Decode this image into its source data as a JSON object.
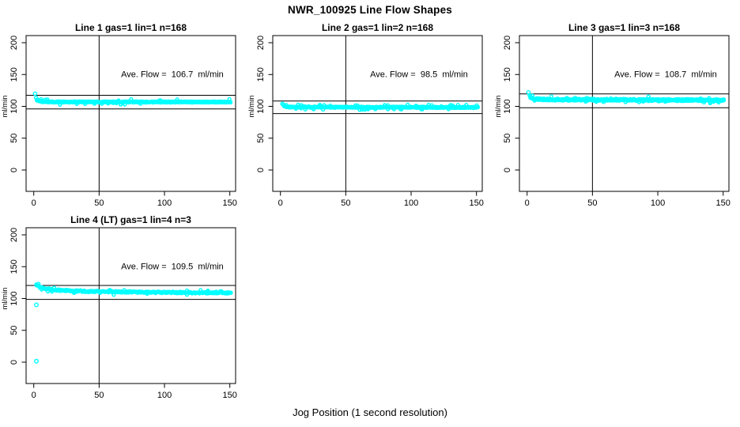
{
  "figure": {
    "title": "NWR_100925  Line Flow Shapes",
    "xlabel": "Jog Position (1 second resolution)",
    "point_color": "#00ffff",
    "axis_color": "#000000",
    "background_color": "#ffffff"
  },
  "chart_data": [
    {
      "type": "scatter",
      "title": "Line 1 gas=1 lin=1 n=168",
      "ylabel": "ml/min",
      "annotation": "Ave. Flow =  106.7  ml/min",
      "avg_flow_ml_min": 106.7,
      "x_ticks": [
        0,
        50,
        100,
        150
      ],
      "y_ticks": [
        0,
        50,
        100,
        150,
        200
      ],
      "vline_x": 50,
      "hlines": [
        117.4,
        96.0
      ],
      "band": [
        [
          2.5,
          110
        ],
        [
          4,
          108.3
        ],
        [
          7,
          107.5
        ],
        [
          12,
          107
        ],
        [
          151,
          106.8
        ]
      ],
      "lead_points": [
        [
          1,
          120
        ],
        [
          1.8,
          113.5
        ]
      ],
      "outliers": [],
      "jitter": 1.1,
      "density": 3,
      "annotation_pos": [
        106,
        151
      ]
    },
    {
      "type": "scatter",
      "title": "Line 2 gas=1 lin=2 n=168",
      "ylabel": "ml/min",
      "annotation": "Ave. Flow =  98.5  ml/min",
      "avg_flow_ml_min": 98.5,
      "x_ticks": [
        0,
        50,
        100,
        150
      ],
      "y_ticks": [
        0,
        50,
        100,
        150,
        200
      ],
      "vline_x": 50,
      "hlines": [
        108.4,
        88.7
      ],
      "band": [
        [
          3,
          100.3
        ],
        [
          5,
          99.2
        ],
        [
          10,
          98.8
        ],
        [
          151,
          98.4
        ]
      ],
      "lead_points": [
        [
          1.5,
          104
        ],
        [
          2.2,
          102.5
        ],
        [
          3,
          101.2
        ]
      ],
      "outliers": [],
      "jitter": 1.1,
      "density": 3,
      "annotation_pos": [
        106,
        151
      ]
    },
    {
      "type": "scatter",
      "title": "Line 3 gas=1 lin=3 n=168",
      "ylabel": "ml/min",
      "annotation": "Ave. Flow =  108.7  ml/min",
      "avg_flow_ml_min": 108.7,
      "x_ticks": [
        0,
        50,
        100,
        150
      ],
      "y_ticks": [
        0,
        50,
        100,
        150,
        200
      ],
      "vline_x": 50,
      "hlines": [
        119.6,
        97.8
      ],
      "band": [
        [
          2.5,
          114.5
        ],
        [
          4,
          112.5
        ],
        [
          8,
          111.3
        ],
        [
          20,
          110.6
        ],
        [
          80,
          110.2
        ],
        [
          151,
          109.6
        ]
      ],
      "lead_points": [
        [
          1,
          122
        ],
        [
          2,
          117
        ]
      ],
      "outliers": [],
      "jitter": 1.8,
      "density": 3,
      "annotation_pos": [
        106,
        151
      ]
    },
    {
      "type": "scatter",
      "title": "Line 4 (LT) gas=1 lin=4 n=3",
      "ylabel": "ml/min",
      "annotation": "Ave. Flow =  109.5  ml/min",
      "avg_flow_ml_min": 109.5,
      "x_ticks": [
        0,
        50,
        100,
        150
      ],
      "y_ticks": [
        0,
        50,
        100,
        150,
        200
      ],
      "vline_x": 50,
      "hlines": [
        120.5,
        98.6
      ],
      "band": [
        [
          2,
          121.5
        ],
        [
          4,
          118.5
        ],
        [
          8,
          116
        ],
        [
          15,
          113.6
        ],
        [
          30,
          111.8
        ],
        [
          60,
          110.5
        ],
        [
          100,
          109.6
        ],
        [
          151,
          108.8
        ]
      ],
      "lead_points": [],
      "outliers": [
        [
          2,
          90
        ],
        [
          2,
          1.5
        ]
      ],
      "jitter": 1.4,
      "density": 2,
      "annotation_pos": [
        106,
        151
      ]
    }
  ]
}
